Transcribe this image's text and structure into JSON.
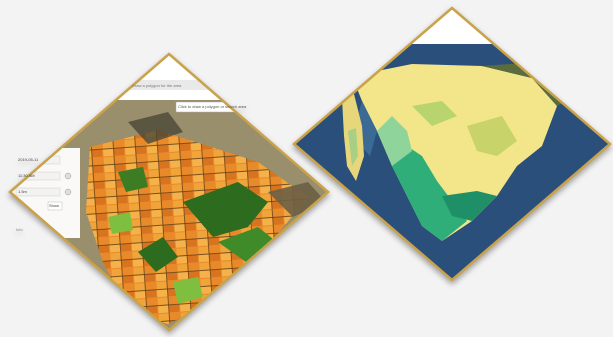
{
  "left_panel": {
    "top_bar_text": "Draw a polygon for the area",
    "tooltip_text": "Click to draw a polygon or search area",
    "sidebar_values": [
      "2019-05-11",
      "11:30 AM",
      "1.5m",
      "Show"
    ],
    "sidebar_caption": "Info"
  },
  "right_panel": {
    "top_bar_text": ""
  },
  "colors": {
    "frame": "#c9a24a",
    "background": "#f3f3f3",
    "crop_orange": "#e98a2a",
    "crop_green": "#2d6b1e",
    "ocean": "#2a4f7a",
    "desert": "#f2e58a",
    "vegetation": "#2fae7a"
  }
}
